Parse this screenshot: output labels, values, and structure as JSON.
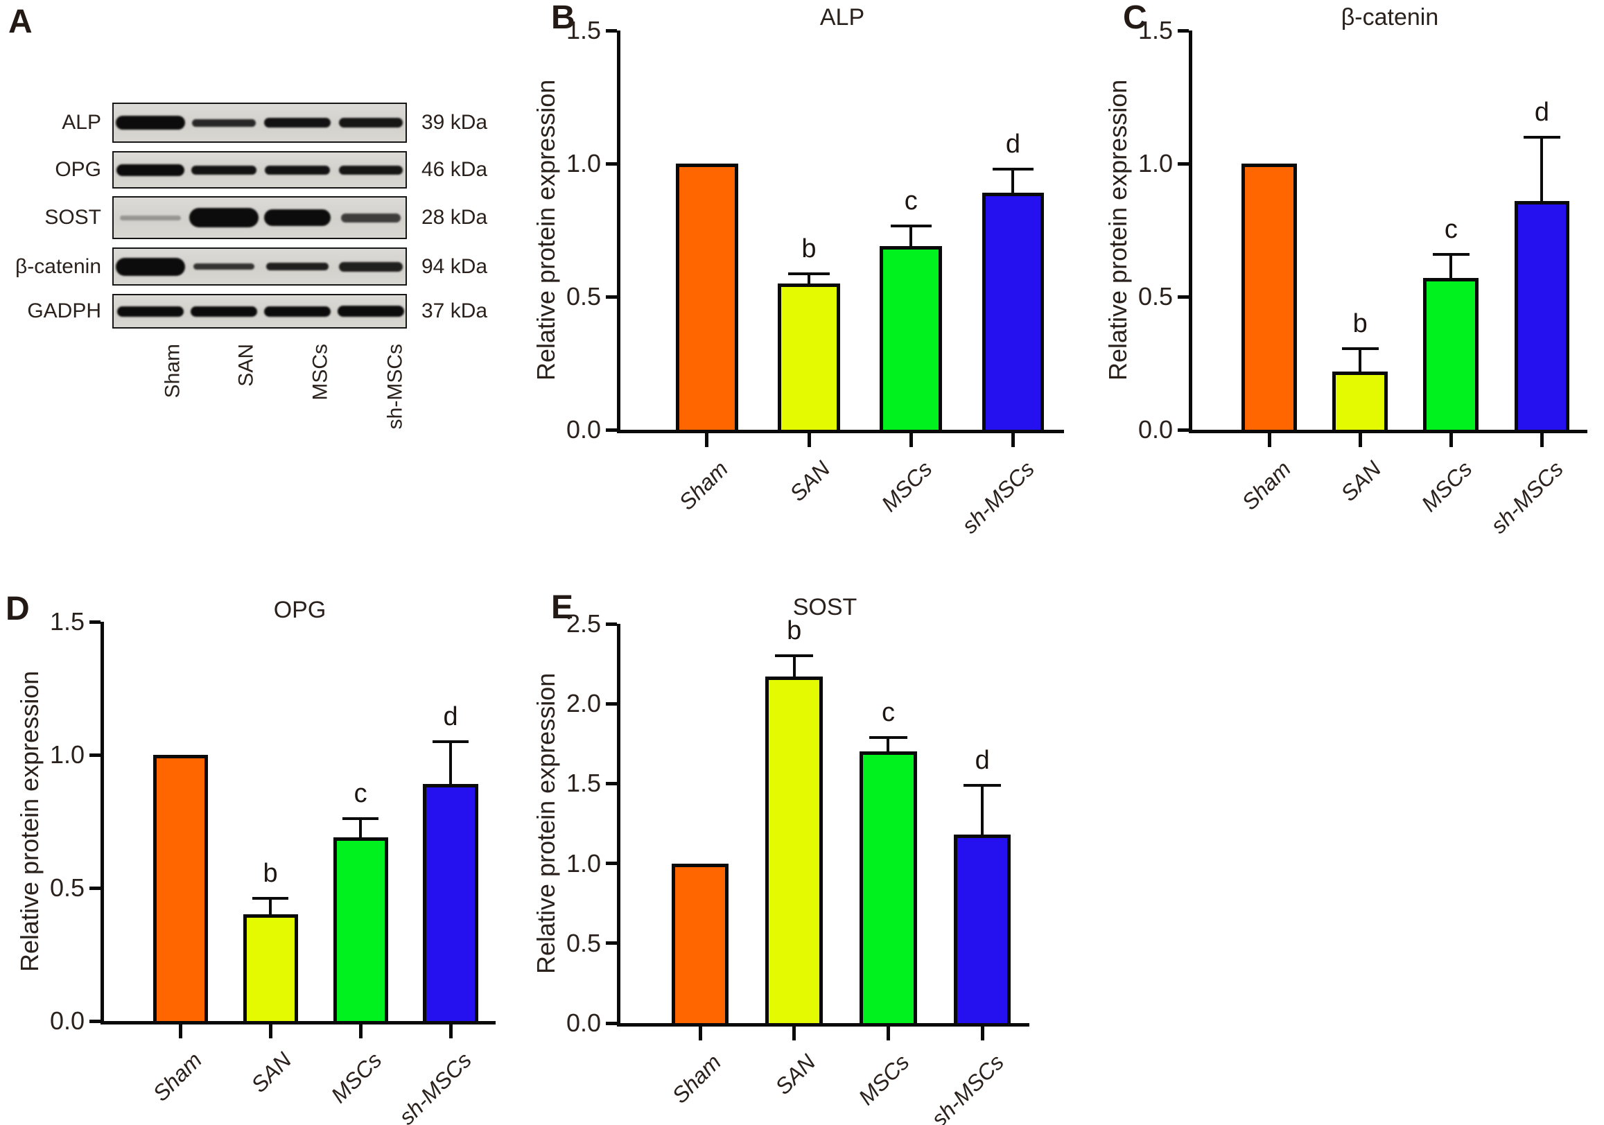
{
  "figure": {
    "background": "#ffffff",
    "accent_black": "#0a0a0a",
    "bar_colors": [
      "#FF6600",
      "#E3FA00",
      "#00F21E",
      "#2511F0"
    ],
    "groups": [
      "Sham",
      "SAN",
      "MSCs",
      "sh-MSCs"
    ]
  },
  "panelA": {
    "letter": "A",
    "lanes": [
      "Sham",
      "SAN",
      "MSCs",
      "sh-MSCs"
    ],
    "blot_background": "#d7d5d0",
    "rows": [
      {
        "label": "ALP",
        "kda": "39 kDa",
        "bands": [
          {
            "w": 100,
            "h": 20,
            "o": 1
          },
          {
            "w": 92,
            "h": 11,
            "o": 0.86
          },
          {
            "w": 96,
            "h": 14,
            "o": 0.97
          },
          {
            "w": 92,
            "h": 14,
            "o": 0.95
          }
        ]
      },
      {
        "label": "OPG",
        "kda": "46 kDa",
        "bands": [
          {
            "w": 98,
            "h": 17,
            "o": 1
          },
          {
            "w": 94,
            "h": 13,
            "o": 0.96
          },
          {
            "w": 94,
            "h": 13,
            "o": 0.96
          },
          {
            "w": 92,
            "h": 13,
            "o": 0.95
          }
        ]
      },
      {
        "label": "SOST",
        "kda": "28 kDa",
        "bands": [
          {
            "w": 88,
            "h": 7,
            "o": 0.3
          },
          {
            "w": 100,
            "h": 28,
            "o": 1
          },
          {
            "w": 96,
            "h": 24,
            "o": 1
          },
          {
            "w": 86,
            "h": 13,
            "o": 0.75
          }
        ]
      },
      {
        "label": "β-catenin",
        "kda": "94 kDa",
        "bands": [
          {
            "w": 100,
            "h": 26,
            "o": 1
          },
          {
            "w": 88,
            "h": 9,
            "o": 0.8
          },
          {
            "w": 90,
            "h": 11,
            "o": 0.9
          },
          {
            "w": 92,
            "h": 14,
            "o": 0.9
          }
        ]
      },
      {
        "label": "GADPH",
        "kda": "37 kDa",
        "bands": [
          {
            "w": 96,
            "h": 15,
            "o": 1
          },
          {
            "w": 96,
            "h": 15,
            "o": 1
          },
          {
            "w": 96,
            "h": 15,
            "o": 1
          },
          {
            "w": 96,
            "h": 16,
            "o": 1
          }
        ]
      }
    ]
  },
  "chart_data": [
    {
      "id": "B",
      "type": "bar",
      "panel_letter": "B",
      "title": "ALP",
      "ylabel": "Relative protein expression",
      "xlabel": "",
      "ylim": [
        0,
        1.5
      ],
      "yticks": [
        0.0,
        0.5,
        1.0,
        1.5
      ],
      "grid": false,
      "legend": "none",
      "categories": [
        "Sham",
        "SAN",
        "MSCs",
        "sh-MSCs"
      ],
      "values": [
        1.0,
        0.55,
        0.69,
        0.89
      ],
      "errors_plus": [
        0,
        0.035,
        0.075,
        0.09
      ],
      "sig_letters": [
        "",
        "b",
        "c",
        "d"
      ]
    },
    {
      "id": "C",
      "type": "bar",
      "panel_letter": "C",
      "title": "β-catenin",
      "ylabel": "Relative protein expression",
      "xlabel": "",
      "ylim": [
        0,
        1.5
      ],
      "yticks": [
        0.0,
        0.5,
        1.0,
        1.5
      ],
      "grid": false,
      "legend": "none",
      "categories": [
        "Sham",
        "SAN",
        "MSCs",
        "sh-MSCs"
      ],
      "values": [
        1.0,
        0.22,
        0.57,
        0.86
      ],
      "errors_plus": [
        0,
        0.085,
        0.09,
        0.24
      ],
      "sig_letters": [
        "",
        "b",
        "c",
        "d"
      ]
    },
    {
      "id": "D",
      "type": "bar",
      "panel_letter": "D",
      "title": "OPG",
      "ylabel": "Relative protein expression",
      "xlabel": "",
      "ylim": [
        0,
        1.5
      ],
      "yticks": [
        0.0,
        0.5,
        1.0,
        1.5
      ],
      "grid": false,
      "legend": "none",
      "categories": [
        "Sham",
        "SAN",
        "MSCs",
        "sh-MSCs"
      ],
      "values": [
        1.0,
        0.4,
        0.69,
        0.89
      ],
      "errors_plus": [
        0,
        0.06,
        0.07,
        0.16
      ],
      "sig_letters": [
        "",
        "b",
        "c",
        "d"
      ]
    },
    {
      "id": "E",
      "type": "bar",
      "panel_letter": "E",
      "title": "SOST",
      "ylabel": "Relative protein expression",
      "xlabel": "",
      "ylim": [
        0,
        2.5
      ],
      "yticks": [
        0.0,
        0.5,
        1.0,
        1.5,
        2.0,
        2.5
      ],
      "grid": false,
      "legend": "none",
      "categories": [
        "Sham",
        "SAN",
        "MSCs",
        "sh-MSCs"
      ],
      "values": [
        1.0,
        2.17,
        1.7,
        1.18
      ],
      "errors_plus": [
        0,
        0.13,
        0.09,
        0.31
      ],
      "sig_letters": [
        "",
        "b",
        "c",
        "d"
      ]
    }
  ]
}
